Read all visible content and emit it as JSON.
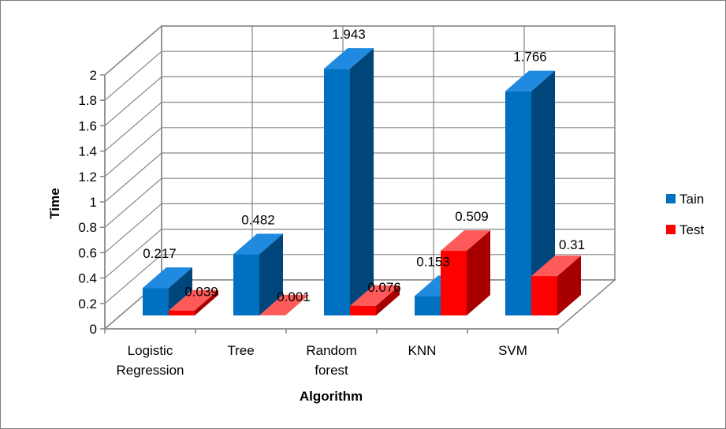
{
  "chart_data": {
    "type": "bar",
    "style": "3d-clustered-column",
    "categories": [
      "Logistic Regression",
      "Tree",
      "Random forest",
      "KNN",
      "SVM"
    ],
    "category_lines": [
      [
        "Logistic",
        "Regression"
      ],
      [
        "Tree"
      ],
      [
        "Random",
        "forest"
      ],
      [
        "KNN"
      ],
      [
        "SVM"
      ]
    ],
    "series": [
      {
        "name": "Tain",
        "values": [
          0.217,
          0.482,
          1.943,
          0.153,
          1.766
        ],
        "labels": [
          "0.217",
          "0.482",
          "1.943",
          "0.153",
          "1.766"
        ],
        "color": "#0070c0"
      },
      {
        "name": "Test",
        "values": [
          0.039,
          0.001,
          0.076,
          0.509,
          0.31
        ],
        "labels": [
          "0.039",
          "0.001",
          "0.076",
          "0.509",
          "0.31"
        ],
        "color": "#ff0000"
      }
    ],
    "xlabel": "Algorithm",
    "ylabel": "Time",
    "ylim": [
      0,
      2
    ],
    "yticks": [
      "0",
      "0.2",
      "0.4",
      "0.6",
      "0.8",
      "1",
      "1.2",
      "1.4",
      "1.6",
      "1.8",
      "2"
    ],
    "grid": true,
    "legend": "right"
  }
}
